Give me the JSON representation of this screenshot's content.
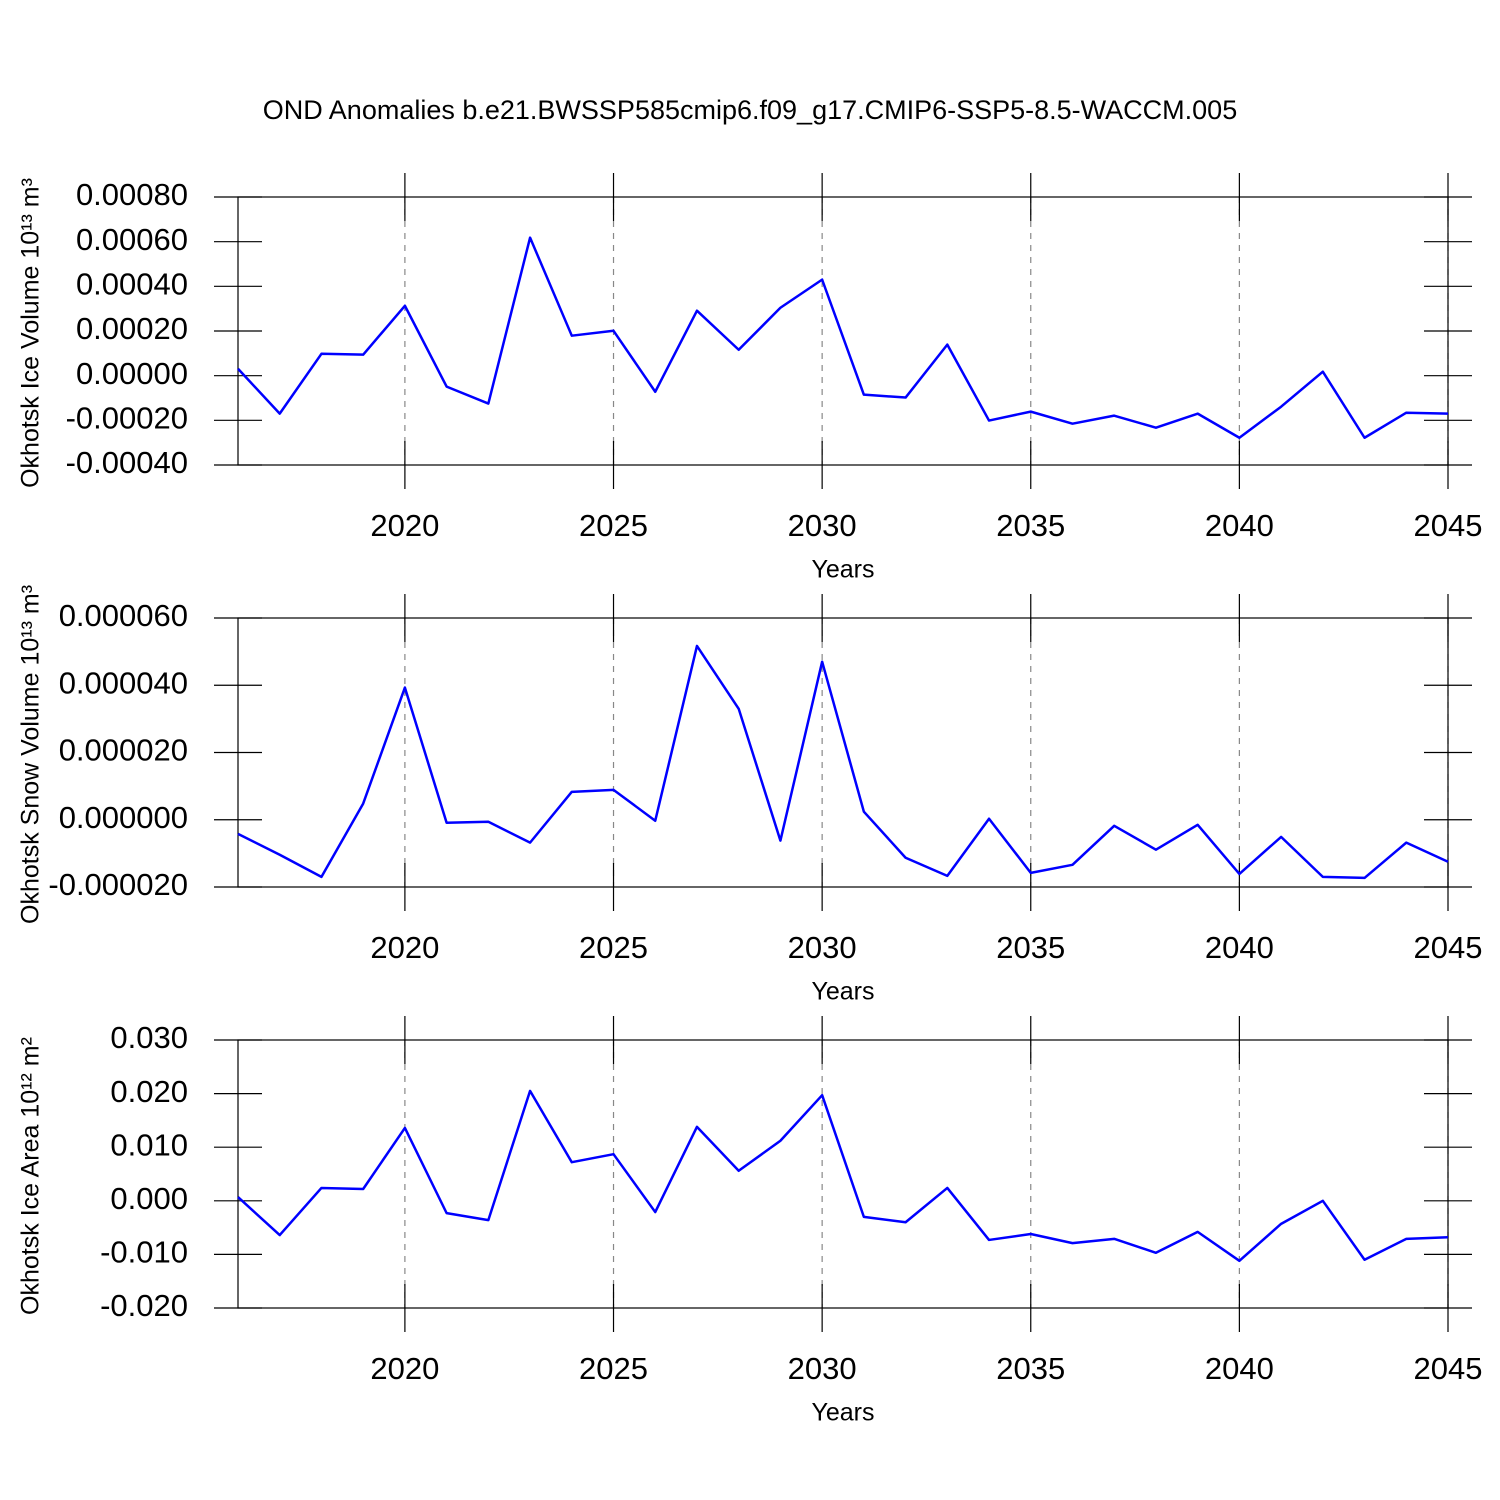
{
  "title": "OND Anomalies b.e21.BWSSP585cmip6.f09_g17.CMIP6-SSP5-8.5-WACCM.005",
  "chart_data": [
    {
      "type": "line",
      "xlabel": "Years",
      "ylabel": "Okhotsk Ice Volume 10¹³ m³",
      "color": "#0000ff",
      "grid": true,
      "x": [
        2016,
        2017,
        2018,
        2019,
        2020,
        2021,
        2022,
        2023,
        2024,
        2025,
        2026,
        2027,
        2028,
        2029,
        2030,
        2031,
        2032,
        2033,
        2034,
        2035,
        2036,
        2037,
        2038,
        2039,
        2040,
        2041,
        2042,
        2043,
        2044,
        2045
      ],
      "values": [
        3.1e-05,
        -0.00017,
        9.8e-05,
        9.4e-05,
        0.000313,
        -4.9e-05,
        -0.000125,
        0.000618,
        0.000179,
        0.000201,
        -7.2e-05,
        0.000291,
        0.000116,
        0.000304,
        0.00043,
        -8.5e-05,
        -9.8e-05,
        0.000139,
        -0.000201,
        -0.000161,
        -0.000215,
        -0.000179,
        -0.000233,
        -0.00017,
        -0.000278,
        -0.000139,
        1.8e-05,
        -0.000278,
        -0.000166,
        -0.00017
      ],
      "xlim": [
        2016,
        2045
      ],
      "xticks": [
        2020,
        2025,
        2030,
        2035,
        2040,
        2045
      ],
      "ylim": [
        -0.0004,
        0.0008
      ],
      "yticks": [
        {
          "value": -0.0004,
          "label": "-0.00040"
        },
        {
          "value": -0.0002,
          "label": "-0.00020"
        },
        {
          "value": 0,
          "label": "0.00000"
        },
        {
          "value": 0.0002,
          "label": "0.00020"
        },
        {
          "value": 0.0004,
          "label": "0.00040"
        },
        {
          "value": 0.0006,
          "label": "0.00060"
        },
        {
          "value": 0.0008,
          "label": "0.00080"
        }
      ]
    },
    {
      "type": "line",
      "xlabel": "Years",
      "ylabel": "Okhotsk Snow Volume 10¹³ m³",
      "color": "#0000ff",
      "grid": true,
      "x": [
        2016,
        2017,
        2018,
        2019,
        2020,
        2021,
        2022,
        2023,
        2024,
        2025,
        2026,
        2027,
        2028,
        2029,
        2030,
        2031,
        2032,
        2033,
        2034,
        2035,
        2036,
        2037,
        2038,
        2039,
        2040,
        2041,
        2042,
        2043,
        2044,
        2045
      ],
      "values": [
        -4.2e-06,
        -1.04e-05,
        -1.7e-05,
        4.8e-06,
        3.93e-05,
        -9e-07,
        -6e-07,
        -6.8e-06,
        8.3e-06,
        8.9e-06,
        -3e-07,
        5.17e-05,
        3.3e-05,
        -6.2e-06,
        4.7e-05,
        2.4e-06,
        -1.13e-05,
        -1.67e-05,
        3e-07,
        -1.58e-05,
        -1.34e-05,
        -1.8e-06,
        -8.9e-06,
        -1.5e-06,
        -1.61e-05,
        -5.1e-06,
        -1.7e-05,
        -1.73e-05,
        -6.8e-06,
        -1.25e-05
      ],
      "xlim": [
        2016,
        2045
      ],
      "xticks": [
        2020,
        2025,
        2030,
        2035,
        2040,
        2045
      ],
      "ylim": [
        -2e-05,
        6e-05
      ],
      "yticks": [
        {
          "value": -2e-05,
          "label": "-0.000020"
        },
        {
          "value": 0,
          "label": "0.000000"
        },
        {
          "value": 2e-05,
          "label": "0.000020"
        },
        {
          "value": 4e-05,
          "label": "0.000040"
        },
        {
          "value": 6e-05,
          "label": "0.000060"
        }
      ]
    },
    {
      "type": "line",
      "xlabel": "Years",
      "ylabel": "Okhotsk Ice Area 10¹² m²",
      "color": "#0000ff",
      "grid": true,
      "x": [
        2016,
        2017,
        2018,
        2019,
        2020,
        2021,
        2022,
        2023,
        2024,
        2025,
        2026,
        2027,
        2028,
        2029,
        2030,
        2031,
        2032,
        2033,
        2034,
        2035,
        2036,
        2037,
        2038,
        2039,
        2040,
        2041,
        2042,
        2043,
        2044,
        2045
      ],
      "values": [
        0.0007,
        -0.0064,
        0.0024,
        0.0022,
        0.0136,
        -0.0023,
        -0.0036,
        0.0205,
        0.0072,
        0.0087,
        -0.0021,
        0.0138,
        0.0056,
        0.0112,
        0.0197,
        -0.003,
        -0.004,
        0.0024,
        -0.0073,
        -0.0062,
        -0.0079,
        -0.0071,
        -0.0097,
        -0.0058,
        -0.0112,
        -0.0043,
        0,
        -0.011,
        -0.0071,
        -0.0068
      ],
      "xlim": [
        2016,
        2045
      ],
      "xticks": [
        2020,
        2025,
        2030,
        2035,
        2040,
        2045
      ],
      "ylim": [
        -0.02,
        0.03
      ],
      "yticks": [
        {
          "value": -0.02,
          "label": "-0.020"
        },
        {
          "value": -0.01,
          "label": "-0.010"
        },
        {
          "value": 0,
          "label": "0.000"
        },
        {
          "value": 0.01,
          "label": "0.010"
        },
        {
          "value": 0.02,
          "label": "0.020"
        },
        {
          "value": 0.03,
          "label": "0.030"
        }
      ]
    }
  ]
}
